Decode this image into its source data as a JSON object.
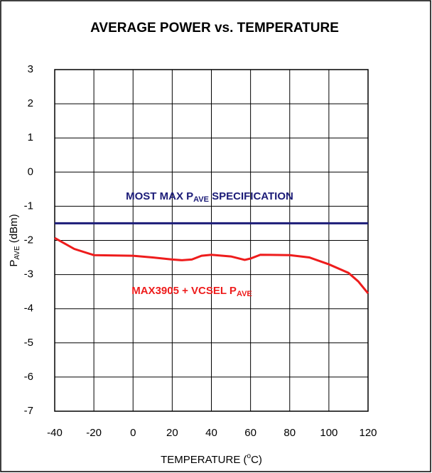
{
  "chart_data": {
    "type": "line",
    "title": "AVERAGE POWER vs. TEMPERATURE",
    "x_label": {
      "text": "TEMPERATURE (",
      "sup": "o",
      "rest": "C)"
    },
    "y_label": {
      "text": "P",
      "sub": "AVE",
      "rest": " (dBm)"
    },
    "xlim": [
      -40,
      120
    ],
    "xticks": [
      -40,
      -20,
      0,
      20,
      40,
      60,
      80,
      100,
      120
    ],
    "ylim": [
      -7,
      3
    ],
    "yticks": [
      -7,
      -6,
      -5,
      -4,
      -3,
      -2,
      -1,
      0,
      1,
      2,
      3
    ],
    "grid": true,
    "series": [
      {
        "color": "#1c1c78",
        "x": [
          -40,
          120
        ],
        "values": [
          -1.5,
          -1.5
        ]
      },
      {
        "color": "#ee1c1c",
        "x": [
          -40,
          -30,
          -20,
          0,
          10,
          20,
          25,
          30,
          35,
          40,
          50,
          57,
          60,
          65,
          80,
          90,
          100,
          110,
          115,
          120
        ],
        "values": [
          -1.93,
          -2.25,
          -2.43,
          -2.45,
          -2.5,
          -2.56,
          -2.58,
          -2.56,
          -2.45,
          -2.42,
          -2.47,
          -2.57,
          -2.53,
          -2.42,
          -2.43,
          -2.5,
          -2.7,
          -2.95,
          -3.2,
          -3.55
        ]
      }
    ],
    "annotations": [
      {
        "text": "MOST MAX P",
        "sub": "AVE",
        "rest": " SPECIFICATION",
        "color": "#1c1c78"
      },
      {
        "text": "MAX3905 + VCSEL  P",
        "sub": "AVE",
        "rest": "",
        "color": "#ee1c1c"
      }
    ]
  }
}
